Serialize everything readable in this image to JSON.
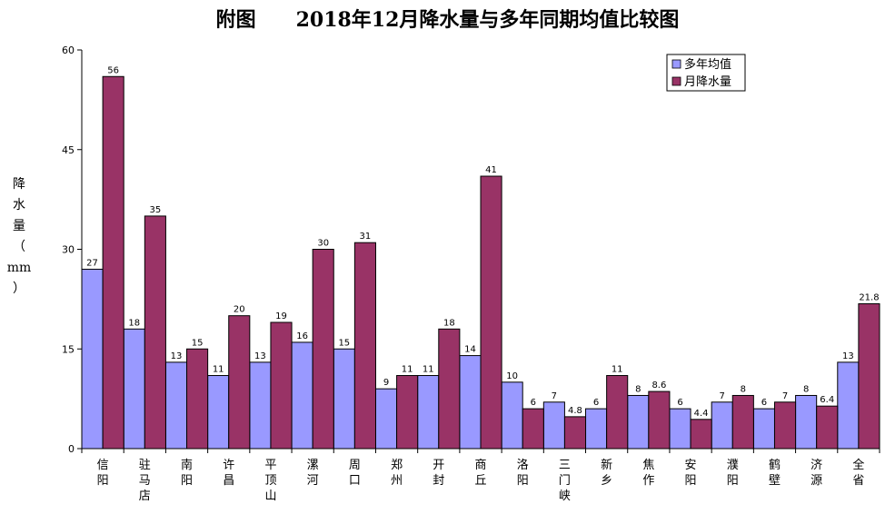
{
  "chart_data": {
    "type": "bar",
    "title_prefix": "附图",
    "title": "2018年12月降水量与多年同期均值比较图",
    "ylabel": "降水量（mm）",
    "xlabel": "",
    "ylim": [
      0,
      60
    ],
    "yticks": [
      0,
      15,
      30,
      45,
      60
    ],
    "grid": false,
    "legend_position": "top-right",
    "categories": [
      "信阳",
      "驻马店",
      "南阳",
      "许昌",
      "平顶山",
      "漯河",
      "周口",
      "郑州",
      "开封",
      "商丘",
      "洛阳",
      "三门峡",
      "新乡",
      "焦作",
      "安阳",
      "濮阳",
      "鹤壁",
      "济源",
      "全省"
    ],
    "series": [
      {
        "name": "多年均值",
        "color": "#9999ff",
        "values": [
          27,
          18,
          13,
          11,
          13,
          16,
          15,
          9,
          11,
          14,
          10,
          7,
          6,
          8,
          6,
          7,
          6,
          8,
          13
        ],
        "labels": [
          "27",
          "18",
          "13",
          "11",
          "13",
          "16",
          "15",
          "9",
          "11",
          "14",
          "10",
          "7",
          "6",
          "8",
          "6",
          "7",
          "6",
          "8",
          "13"
        ]
      },
      {
        "name": "月降水量",
        "color": "#993366",
        "values": [
          56,
          35,
          15,
          20,
          19,
          30,
          31,
          11,
          18,
          41,
          6,
          4.8,
          11,
          8.6,
          4.4,
          8,
          7,
          6.4,
          21.8
        ],
        "labels": [
          "56",
          "35",
          "15",
          "20",
          "19",
          "30",
          "31",
          "11",
          "18",
          "41",
          "6",
          "4.8",
          "11",
          "8.6",
          "4.4",
          "8",
          "7",
          "6.4",
          "21.8"
        ]
      }
    ]
  }
}
